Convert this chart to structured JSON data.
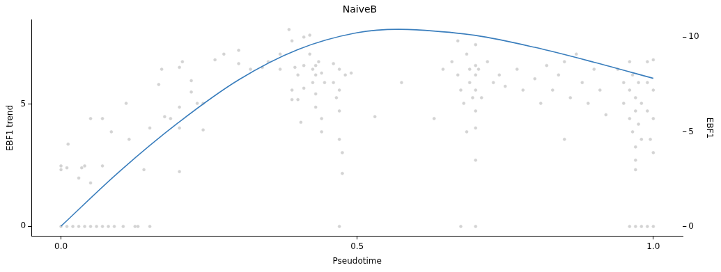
{
  "chart_data": {
    "type": "scatter",
    "title": "NaiveB",
    "xlabel": "Pseudotime",
    "ylabel": "EBF1 trend",
    "y2label": "EBF1",
    "xlim": [
      -0.05,
      1.05
    ],
    "xticks": [
      {
        "value": 0,
        "label": "0.0"
      },
      {
        "value": 0.5,
        "label": "0.5"
      },
      {
        "value": 1,
        "label": "1.0"
      }
    ],
    "ylim": [
      -0.4,
      8.45
    ],
    "yticks": [
      0,
      5
    ],
    "y2lim": [
      -0.5,
      10.9
    ],
    "y2ticks": [
      0,
      5,
      10
    ],
    "grid": false,
    "legend": false,
    "series": [
      {
        "axis": "y2",
        "color": "#d3d3d3",
        "marker": "circle",
        "x": [
          0,
          0.01,
          0.02,
          0.03,
          0.04,
          0.05,
          0.06,
          0.07,
          0.08,
          0.09,
          0.105,
          0.125,
          0.13,
          0.15,
          0.47,
          0.675,
          0.7,
          0.96,
          0.97,
          0.98,
          0.99,
          1.0,
          0.0,
          0.0,
          0.01,
          0.012,
          0.03,
          0.035,
          0.04,
          0.05,
          0.05,
          0.07,
          0.07,
          0.085,
          0.11,
          0.115,
          0.14,
          0.15,
          0.165,
          0.17,
          0.175,
          0.185,
          0.2,
          0.2,
          0.205,
          0.2,
          0.2,
          0.22,
          0.22,
          0.23,
          0.24,
          0.24,
          0.26,
          0.275,
          0.3,
          0.3,
          0.32,
          0.34,
          0.35,
          0.37,
          0.37,
          0.385,
          0.39,
          0.395,
          0.39,
          0.39,
          0.4,
          0.4,
          0.405,
          0.41,
          0.41,
          0.41,
          0.42,
          0.42,
          0.425,
          0.425,
          0.43,
          0.43,
          0.43,
          0.43,
          0.435,
          0.44,
          0.44,
          0.445,
          0.44,
          0.46,
          0.46,
          0.465,
          0.47,
          0.47,
          0.47,
          0.47,
          0.475,
          0.475,
          0.48,
          0.49,
          0.53,
          0.575,
          0.63,
          0.645,
          0.66,
          0.67,
          0.67,
          0.675,
          0.68,
          0.685,
          0.685,
          0.69,
          0.69,
          0.695,
          0.7,
          0.7,
          0.7,
          0.7,
          0.7,
          0.7,
          0.7,
          0.705,
          0.71,
          0.72,
          0.73,
          0.74,
          0.75,
          0.77,
          0.78,
          0.8,
          0.81,
          0.82,
          0.83,
          0.84,
          0.85,
          0.85,
          0.86,
          0.87,
          0.88,
          0.89,
          0.9,
          0.91,
          0.92,
          0.94,
          0.95,
          0.95,
          0.96,
          0.96,
          0.96,
          0.965,
          0.965,
          0.97,
          0.97,
          0.97,
          0.97,
          0.97,
          0.975,
          0.975,
          0.98,
          0.98,
          0.99,
          0.99,
          0.99,
          0.995,
          1.0,
          1.0,
          1.0,
          1.0
        ],
        "values": [
          0,
          0,
          0,
          0,
          0,
          0,
          0,
          0,
          0,
          0,
          0,
          0,
          0,
          0,
          0,
          0,
          0,
          0,
          0,
          0,
          0,
          0,
          3.2,
          3.0,
          3.1,
          4.35,
          2.56,
          3.1,
          3.2,
          5.7,
          2.3,
          5.7,
          3.2,
          5.0,
          6.5,
          4.6,
          3.0,
          5.2,
          7.5,
          8.3,
          5.8,
          5.7,
          6.3,
          8.4,
          8.7,
          5.2,
          2.9,
          7.1,
          7.7,
          6.5,
          5.1,
          6.5,
          8.8,
          9.1,
          9.3,
          8.6,
          8.3,
          8.4,
          8.7,
          9.1,
          8.3,
          10.4,
          9.8,
          8.4,
          7.2,
          6.7,
          8.0,
          6.7,
          5.5,
          10.0,
          8.5,
          7.3,
          10.1,
          9.1,
          8.3,
          7.6,
          8.5,
          8.0,
          7.0,
          6.3,
          8.7,
          8.1,
          5.7,
          7.6,
          5.0,
          8.6,
          7.6,
          6.8,
          8.3,
          7.2,
          6.1,
          4.6,
          3.9,
          2.8,
          8.0,
          8.1,
          5.8,
          7.6,
          5.7,
          8.3,
          8.7,
          9.8,
          8.0,
          7.2,
          6.5,
          9.1,
          5.0,
          8.3,
          7.6,
          6.8,
          9.6,
          8.5,
          8.0,
          7.2,
          6.1,
          5.2,
          3.5,
          8.3,
          6.8,
          8.7,
          7.6,
          8.0,
          7.4,
          8.3,
          7.2,
          7.8,
          6.5,
          8.5,
          7.2,
          8.0,
          4.6,
          8.7,
          6.8,
          9.1,
          7.6,
          6.5,
          8.3,
          7.2,
          5.9,
          8.3,
          7.6,
          6.5,
          8.7,
          7.2,
          5.7,
          8.0,
          5.0,
          6.8,
          6.1,
          4.2,
          3.5,
          3.0,
          7.6,
          5.4,
          4.6,
          6.5,
          8.7,
          7.6,
          6.1,
          4.6,
          8.8,
          7.2,
          5.7,
          3.9
        ]
      },
      {
        "type": "line",
        "color": "#3a7ebd",
        "marker": "none",
        "line_style": "solid",
        "x": [
          0,
          0.1,
          0.2,
          0.3,
          0.4,
          0.5,
          0.57,
          0.6,
          0.7,
          0.8,
          0.9,
          1.0
        ],
        "values": [
          0,
          2.27,
          4.28,
          6.0,
          7.24,
          7.93,
          8.07,
          8.05,
          7.82,
          7.33,
          6.72,
          6.06
        ]
      }
    ]
  }
}
